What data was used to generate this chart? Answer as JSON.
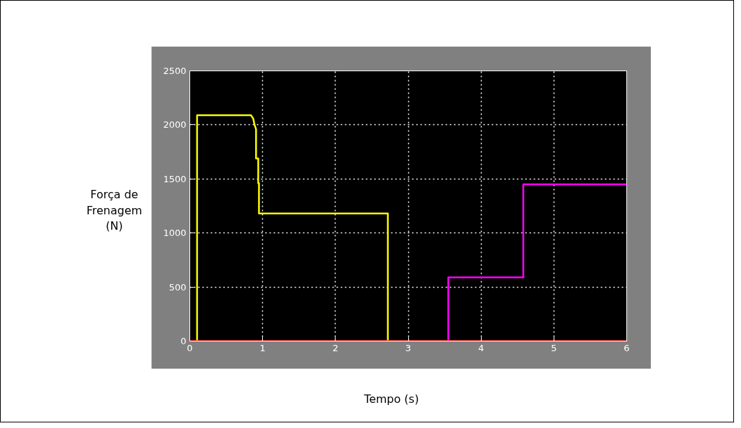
{
  "chart_data": {
    "type": "line",
    "xlabel": "Tempo (s)",
    "ylabel": "Força de\nFrenagem\n(N)",
    "xlim": [
      0,
      6
    ],
    "ylim": [
      0,
      2500
    ],
    "xticks": [
      0,
      1,
      2,
      3,
      4,
      5,
      6
    ],
    "yticks": [
      0,
      500,
      1000,
      1500,
      2000,
      2500
    ],
    "grid": true,
    "series": [
      {
        "color": "#ffff00",
        "x": [
          0.1,
          0.1,
          0.84,
          0.87,
          0.89,
          0.91,
          0.91,
          0.94,
          0.94,
          0.95,
          0.95,
          2.72,
          2.72
        ],
        "values": [
          0,
          2090,
          2090,
          2060,
          2000,
          1960,
          1690,
          1690,
          1460,
          1460,
          1180,
          1180,
          0
        ]
      },
      {
        "color": "#ff00ff",
        "x": [
          3.55,
          3.55,
          4.58,
          4.58,
          6
        ],
        "values": [
          0,
          590,
          590,
          1450,
          1450
        ]
      },
      {
        "color": "#ff0000",
        "x": [
          0,
          6
        ],
        "values": [
          0,
          0
        ]
      }
    ]
  }
}
